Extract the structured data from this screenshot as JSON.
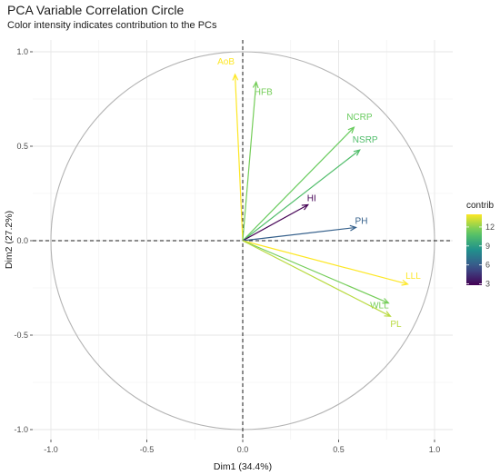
{
  "chart_data": {
    "type": "scatter",
    "title": "PCA Variable Correlation Circle",
    "subtitle": "Color intensity indicates contribution to the PCs",
    "xlabel": "Dim1 (34.4%)",
    "ylabel": "Dim2 (27.2%)",
    "xlim": [
      -1.05,
      1.05
    ],
    "ylim": [
      -1.05,
      1.05
    ],
    "x_ticks": [
      "-1.0",
      "-0.5",
      "0.0",
      "0.5",
      "1.0"
    ],
    "y_ticks": [
      "-1.0",
      "-0.5",
      "0.0",
      "0.5",
      "1.0"
    ],
    "grid": true,
    "variables": [
      {
        "name": "AoB",
        "x": -0.04,
        "y": 0.88,
        "contrib": 14.0
      },
      {
        "name": "HFB",
        "x": 0.07,
        "y": 0.84,
        "contrib": 11.6
      },
      {
        "name": "NCRP",
        "x": 0.58,
        "y": 0.6,
        "contrib": 11.4
      },
      {
        "name": "NSRP",
        "x": 0.61,
        "y": 0.48,
        "contrib": 10.6
      },
      {
        "name": "HI",
        "x": 0.34,
        "y": 0.19,
        "contrib": 2.8
      },
      {
        "name": "PH",
        "x": 0.59,
        "y": 0.07,
        "contrib": 6.2
      },
      {
        "name": "LLL",
        "x": 0.86,
        "y": -0.23,
        "contrib": 14.0
      },
      {
        "name": "WLL",
        "x": 0.76,
        "y": -0.33,
        "contrib": 11.6
      },
      {
        "name": "PL",
        "x": 0.77,
        "y": -0.4,
        "contrib": 12.8
      }
    ],
    "legend": {
      "title": "contrib",
      "position": "right",
      "ticks": [
        "3",
        "6",
        "9",
        "12"
      ],
      "tick_values": [
        3,
        6,
        9,
        12
      ],
      "range": [
        2.8,
        14.0
      ],
      "colormap": "viridis"
    }
  }
}
